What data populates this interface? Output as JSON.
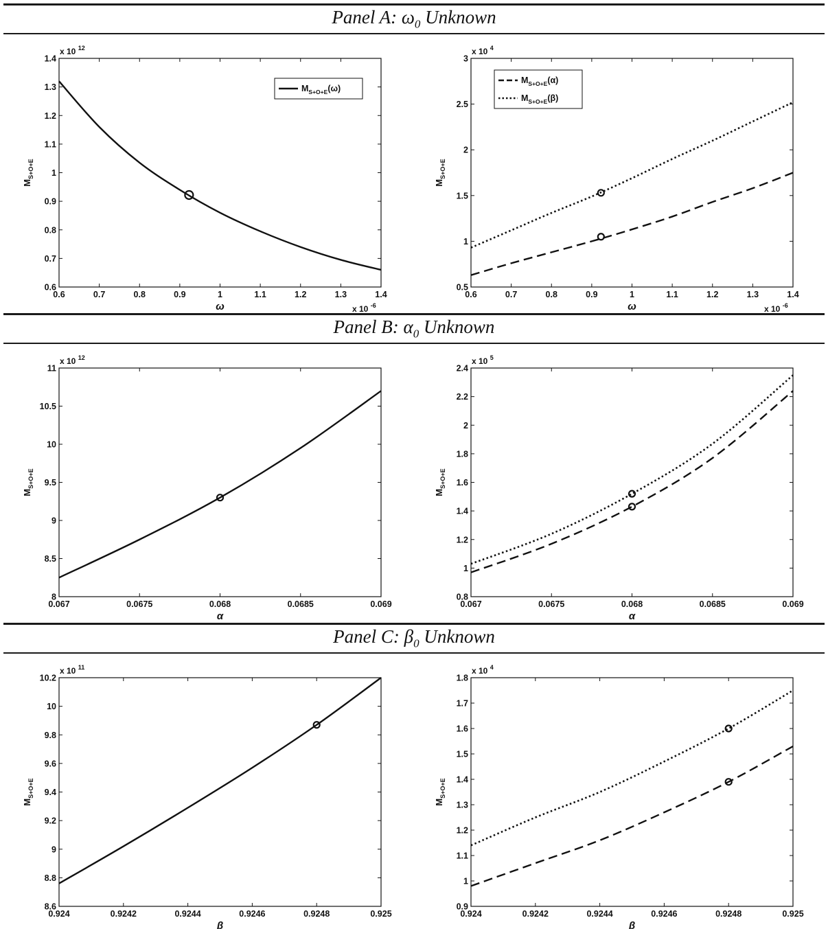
{
  "panels": [
    {
      "title_main": "Panel A: ω",
      "title_sub": "0",
      "title_rest": " Unknown"
    },
    {
      "title_main": "Panel B: α",
      "title_sub": "0",
      "title_rest": " Unknown"
    },
    {
      "title_main": "Panel C: β",
      "title_sub": "0",
      "title_rest": " Unknown"
    }
  ],
  "chart_data": [
    {
      "type": "line",
      "panel": "A",
      "xlabel": "ω",
      "ylabel_main": "M",
      "ylabel_sub": "S+O+E",
      "xlim": [
        0.6,
        1.4
      ],
      "ylim": [
        0.6,
        1.4
      ],
      "xticks": [
        "0.6",
        "0.7",
        "0.8",
        "0.9",
        "1",
        "1.1",
        "1.2",
        "1.3",
        "1.4"
      ],
      "yticks": [
        "0.6",
        "0.7",
        "0.8",
        "0.9",
        "1",
        "1.1",
        "1.2",
        "1.3",
        "1.4"
      ],
      "y_multiplier": "x 10",
      "y_multiplier_exp": "12",
      "x_multiplier": "x 10",
      "x_multiplier_exp": "-6",
      "legend": "top-right",
      "series": [
        {
          "name": "M",
          "name_sub": "S+O+E",
          "name_suffix": "(ω)",
          "style": "solid",
          "x": [
            0.6,
            0.7,
            0.8,
            0.9,
            1.0,
            1.1,
            1.2,
            1.3,
            1.4
          ],
          "y": [
            1.32,
            1.16,
            1.035,
            0.94,
            0.86,
            0.795,
            0.74,
            0.695,
            0.66
          ],
          "marker": [
            0.923,
            0.922
          ]
        }
      ]
    },
    {
      "type": "line",
      "panel": "A",
      "xlabel": "ω",
      "ylabel_main": "M",
      "ylabel_sub": "S+O+E",
      "xlim": [
        0.6,
        1.4
      ],
      "ylim": [
        0.5,
        3.0
      ],
      "xticks": [
        "0.6",
        "0.7",
        "0.8",
        "0.9",
        "1",
        "1.1",
        "1.2",
        "1.3",
        "1.4"
      ],
      "yticks": [
        "0.5",
        "1",
        "1.5",
        "2",
        "2.5",
        "3"
      ],
      "y_multiplier": "x 10",
      "y_multiplier_exp": "4",
      "x_multiplier": "x 10",
      "x_multiplier_exp": "-6",
      "legend": "top-left",
      "series": [
        {
          "name": "M",
          "name_sub": "S+O+E",
          "name_suffix": "(α)",
          "style": "dashed",
          "x": [
            0.6,
            0.7,
            0.8,
            0.9,
            1.0,
            1.1,
            1.2,
            1.3,
            1.4
          ],
          "y": [
            0.63,
            0.76,
            0.88,
            1.0,
            1.13,
            1.27,
            1.43,
            1.58,
            1.75
          ],
          "marker": [
            0.923,
            1.05
          ]
        },
        {
          "name": "M",
          "name_sub": "S+O+E",
          "name_suffix": "(β)",
          "style": "dotted",
          "x": [
            0.6,
            0.7,
            0.8,
            0.9,
            1.0,
            1.1,
            1.2,
            1.3,
            1.4
          ],
          "y": [
            0.93,
            1.12,
            1.31,
            1.49,
            1.69,
            1.9,
            2.1,
            2.31,
            2.52
          ],
          "marker": [
            0.923,
            1.53
          ]
        }
      ]
    },
    {
      "type": "line",
      "panel": "B",
      "xlabel": "α",
      "ylabel_main": "M",
      "ylabel_sub": "S+O+E",
      "xlim": [
        0.067,
        0.069
      ],
      "ylim": [
        8,
        11
      ],
      "xticks": [
        "0.067",
        "0.0675",
        "0.068",
        "0.0685",
        "0.069"
      ],
      "yticks": [
        "8",
        "8.5",
        "9",
        "9.5",
        "10",
        "10.5",
        "11"
      ],
      "y_multiplier": "x 10",
      "y_multiplier_exp": "12",
      "series": [
        {
          "name": "",
          "style": "solid",
          "x": [
            0.067,
            0.0675,
            0.068,
            0.0685,
            0.069
          ],
          "y": [
            8.25,
            8.75,
            9.3,
            9.95,
            10.7
          ],
          "marker": [
            0.068,
            9.3
          ]
        }
      ]
    },
    {
      "type": "line",
      "panel": "B",
      "xlabel": "α",
      "ylabel_main": "M",
      "ylabel_sub": "S+O+E",
      "xlim": [
        0.067,
        0.069
      ],
      "ylim": [
        0.8,
        2.4
      ],
      "xticks": [
        "0.067",
        "0.0675",
        "0.068",
        "0.0685",
        "0.069"
      ],
      "yticks": [
        "0.8",
        "1",
        "1.2",
        "1.4",
        "1.6",
        "1.8",
        "2",
        "2.2",
        "2.4"
      ],
      "y_multiplier": "x 10",
      "y_multiplier_exp": "5",
      "series": [
        {
          "name": "",
          "style": "dashed",
          "x": [
            0.067,
            0.0675,
            0.068,
            0.0685,
            0.069
          ],
          "y": [
            0.97,
            1.17,
            1.43,
            1.77,
            2.24
          ],
          "marker": [
            0.068,
            1.43
          ]
        },
        {
          "name": "",
          "style": "dotted",
          "x": [
            0.067,
            0.0675,
            0.068,
            0.0685,
            0.069
          ],
          "y": [
            1.03,
            1.24,
            1.52,
            1.87,
            2.35
          ],
          "marker": [
            0.068,
            1.52
          ]
        }
      ]
    },
    {
      "type": "line",
      "panel": "C",
      "xlabel": "β",
      "ylabel_main": "M",
      "ylabel_sub": "S+O+E",
      "xlim": [
        0.924,
        0.925
      ],
      "ylim": [
        8.6,
        10.2
      ],
      "xticks": [
        "0.924",
        "0.9242",
        "0.9244",
        "0.9246",
        "0.9248",
        "0.925"
      ],
      "yticks": [
        "8.6",
        "8.8",
        "9",
        "9.2",
        "9.4",
        "9.6",
        "9.8",
        "10",
        "10.2"
      ],
      "y_multiplier": "x 10",
      "y_multiplier_exp": "11",
      "series": [
        {
          "name": "",
          "style": "solid",
          "x": [
            0.924,
            0.9242,
            0.9244,
            0.9246,
            0.9248,
            0.925
          ],
          "y": [
            8.76,
            9.02,
            9.29,
            9.57,
            9.87,
            10.2
          ],
          "marker": [
            0.9248,
            9.87
          ]
        }
      ]
    },
    {
      "type": "line",
      "panel": "C",
      "xlabel": "β",
      "ylabel_main": "M",
      "ylabel_sub": "S+O+E",
      "xlim": [
        0.924,
        0.925
      ],
      "ylim": [
        0.9,
        1.8
      ],
      "xticks": [
        "0.924",
        "0.9242",
        "0.9244",
        "0.9246",
        "0.9248",
        "0.925"
      ],
      "yticks": [
        "0.9",
        "1",
        "1.1",
        "1.2",
        "1.3",
        "1.4",
        "1.5",
        "1.6",
        "1.7",
        "1.8"
      ],
      "y_multiplier": "x 10",
      "y_multiplier_exp": "4",
      "series": [
        {
          "name": "",
          "style": "dashed",
          "x": [
            0.924,
            0.9242,
            0.9244,
            0.9246,
            0.9248,
            0.925
          ],
          "y": [
            0.98,
            1.07,
            1.16,
            1.27,
            1.39,
            1.53
          ],
          "marker": [
            0.9248,
            1.39
          ]
        },
        {
          "name": "",
          "style": "dotted",
          "x": [
            0.924,
            0.9242,
            0.9244,
            0.9246,
            0.9248,
            0.925
          ],
          "y": [
            1.14,
            1.25,
            1.35,
            1.47,
            1.6,
            1.75
          ],
          "marker": [
            0.9248,
            1.6
          ]
        }
      ]
    }
  ]
}
